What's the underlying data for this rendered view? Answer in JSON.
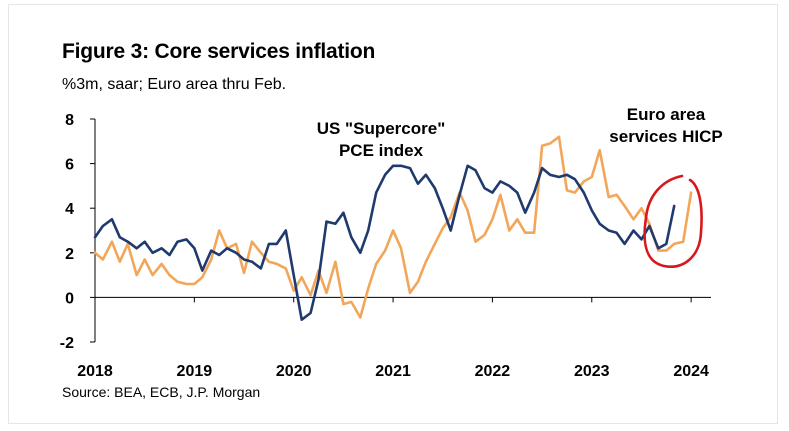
{
  "title": "Figure 3: Core services inflation",
  "subtitle": "%3m, saar; Euro area thru Feb.",
  "source": "Source: BEA, ECB, J.P. Morgan",
  "chart_data": {
    "type": "line",
    "title": "Figure 3: Core services inflation",
    "subtitle": "%3m, saar; Euro area thru Feb.",
    "xlabel": "",
    "ylabel": "",
    "xlim": [
      2018.0,
      2024.2
    ],
    "ylim": [
      -2,
      8
    ],
    "y_ticks": [
      8,
      6,
      4,
      2,
      0,
      -2
    ],
    "x_ticks": [
      "2018",
      "2019",
      "2020",
      "2021",
      "2022",
      "2023",
      "2024"
    ],
    "grid": false,
    "annotations": [
      {
        "lines": [
          "US \"Supercore\"",
          "PCE index"
        ]
      },
      {
        "lines": [
          "Euro area",
          "services HICP"
        ]
      }
    ],
    "highlight_color": "#d7191c",
    "series": [
      {
        "color": "#1f3a6e",
        "x": [
          2018.0,
          2018.08,
          2018.17,
          2018.25,
          2018.33,
          2018.42,
          2018.5,
          2018.58,
          2018.67,
          2018.75,
          2018.83,
          2018.92,
          2019.0,
          2019.08,
          2019.17,
          2019.25,
          2019.33,
          2019.42,
          2019.5,
          2019.58,
          2019.67,
          2019.75,
          2019.83,
          2019.92,
          2020.0,
          2020.08,
          2020.17,
          2020.25,
          2020.33,
          2020.42,
          2020.5,
          2020.58,
          2020.67,
          2020.75,
          2020.83,
          2020.92,
          2021.0,
          2021.08,
          2021.17,
          2021.25,
          2021.33,
          2021.42,
          2021.5,
          2021.58,
          2021.67,
          2021.75,
          2021.83,
          2021.92,
          2022.0,
          2022.08,
          2022.17,
          2022.25,
          2022.33,
          2022.42,
          2022.5,
          2022.58,
          2022.67,
          2022.75,
          2022.83,
          2022.92,
          2023.0,
          2023.08,
          2023.17,
          2023.25,
          2023.33,
          2023.42,
          2023.5,
          2023.58,
          2023.67,
          2023.75,
          2023.83,
          2023.92,
          2024.0
        ],
        "y": [
          2.7,
          3.2,
          3.5,
          2.7,
          2.5,
          2.2,
          2.5,
          2.0,
          2.2,
          1.9,
          2.5,
          2.6,
          2.2,
          1.2,
          2.1,
          1.9,
          2.2,
          2.0,
          1.7,
          1.6,
          1.3,
          2.4,
          2.4,
          3.0,
          1.0,
          -1.0,
          -0.7,
          0.8,
          3.4,
          3.3,
          3.8,
          2.7,
          2.0,
          3.0,
          4.7,
          5.5,
          5.9,
          5.9,
          5.8,
          5.1,
          5.5,
          4.9,
          4.0,
          3.0,
          4.6,
          5.9,
          5.7,
          4.9,
          4.7,
          5.2,
          5.0,
          4.7,
          3.8,
          4.7,
          5.8,
          5.5,
          5.4,
          5.5,
          5.3,
          4.7,
          3.9,
          3.3,
          3.0,
          2.9,
          2.4,
          3.0,
          2.6,
          3.2,
          2.2,
          2.4,
          4.1,
          null,
          null
        ]
      },
      {
        "color": "#f2a65a",
        "x": [
          2018.0,
          2018.08,
          2018.17,
          2018.25,
          2018.33,
          2018.42,
          2018.5,
          2018.58,
          2018.67,
          2018.75,
          2018.83,
          2018.92,
          2019.0,
          2019.08,
          2019.17,
          2019.25,
          2019.33,
          2019.42,
          2019.5,
          2019.58,
          2019.67,
          2019.75,
          2019.83,
          2019.92,
          2020.0,
          2020.08,
          2020.17,
          2020.25,
          2020.33,
          2020.42,
          2020.5,
          2020.58,
          2020.67,
          2020.75,
          2020.83,
          2020.92,
          2021.0,
          2021.08,
          2021.17,
          2021.25,
          2021.33,
          2021.42,
          2021.5,
          2021.58,
          2021.67,
          2021.75,
          2021.83,
          2021.92,
          2022.0,
          2022.08,
          2022.17,
          2022.25,
          2022.33,
          2022.42,
          2022.5,
          2022.58,
          2022.67,
          2022.75,
          2022.83,
          2022.92,
          2023.0,
          2023.08,
          2023.17,
          2023.25,
          2023.33,
          2023.42,
          2023.5,
          2023.58,
          2023.67,
          2023.75,
          2023.83,
          2023.92,
          2024.0,
          2024.08
        ],
        "y": [
          2.0,
          1.7,
          2.5,
          1.6,
          2.4,
          1.0,
          1.7,
          1.0,
          1.5,
          1.0,
          0.7,
          0.6,
          0.6,
          0.9,
          1.7,
          3.0,
          2.2,
          2.4,
          1.1,
          2.5,
          2.0,
          1.6,
          1.5,
          1.3,
          0.3,
          0.9,
          0.1,
          1.2,
          0.2,
          1.6,
          -0.3,
          -0.2,
          -0.9,
          0.4,
          1.5,
          2.1,
          3.0,
          2.2,
          0.2,
          0.7,
          1.6,
          2.4,
          3.1,
          3.6,
          4.7,
          3.9,
          2.5,
          2.8,
          3.5,
          4.6,
          3.0,
          3.5,
          2.9,
          2.9,
          6.8,
          6.9,
          7.2,
          4.8,
          4.7,
          5.2,
          5.4,
          6.6,
          4.5,
          4.6,
          4.1,
          3.5,
          4.0,
          3.3,
          2.1,
          2.1,
          2.4,
          2.5,
          4.7,
          null
        ]
      }
    ]
  }
}
